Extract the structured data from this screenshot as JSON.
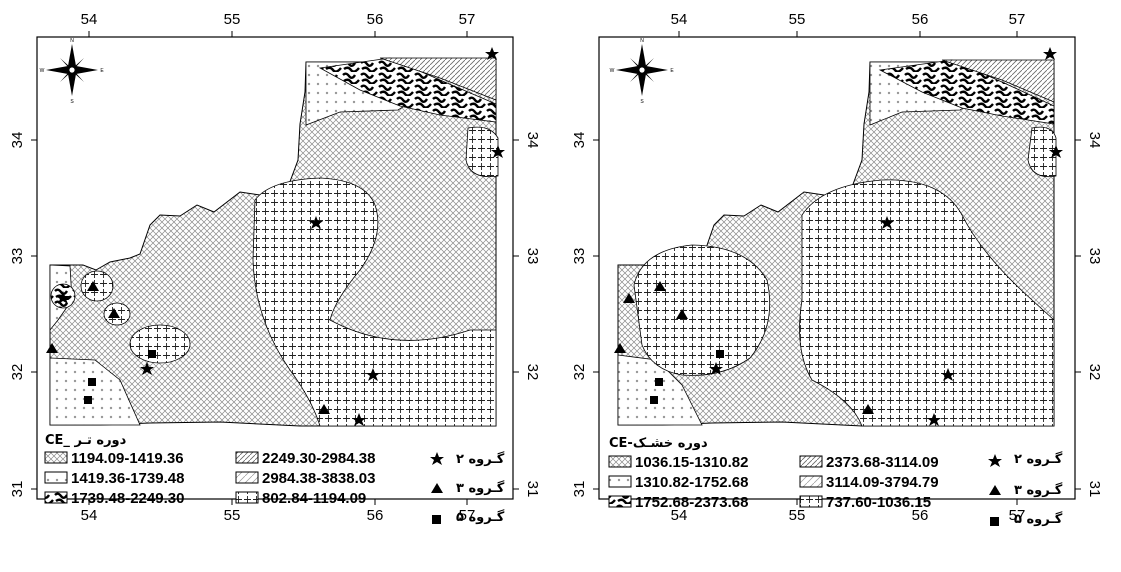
{
  "axis": {
    "x_ticks": [
      "54",
      "55",
      "56",
      "57"
    ],
    "y_ticks": [
      "34",
      "33",
      "32",
      "31"
    ]
  },
  "compass_letters": {
    "n": "N",
    "s": "S",
    "e": "E",
    "w": "W"
  },
  "group_legend": [
    {
      "label": "گـروه ۲",
      "symbol": "star"
    },
    {
      "label": "گـروه ۳",
      "symbol": "triangle"
    },
    {
      "label": "گـروه ۵",
      "symbol": "square"
    }
  ],
  "maps": [
    {
      "title": "CE_ دوره تـر",
      "classes": [
        {
          "range": "1194.09-1419.36",
          "pattern": "crosshatch"
        },
        {
          "range": "1419.36-1739.48",
          "pattern": "dots-x"
        },
        {
          "range": "1739.48-2249.30",
          "pattern": "worm"
        },
        {
          "range": "2249.30-2984.38",
          "pattern": "diag-dense"
        },
        {
          "range": "2984.38-3838.03",
          "pattern": "diag-light"
        },
        {
          "range": "802.84-1194.09",
          "pattern": "plus-dots"
        }
      ]
    },
    {
      "title": "CE-دوره خشـک",
      "classes": [
        {
          "range": "1036.15-1310.82",
          "pattern": "crosshatch"
        },
        {
          "range": "1310.82-1752.68",
          "pattern": "dots-x"
        },
        {
          "range": "1752.68-2373.68",
          "pattern": "worm"
        },
        {
          "range": "2373.68-3114.09",
          "pattern": "diag-dense"
        },
        {
          "range": "3114.09-3794.79",
          "pattern": "diag-light"
        },
        {
          "range": "737.60-1036.15",
          "pattern": "plus"
        }
      ]
    }
  ],
  "colors": {
    "ink": "#000000",
    "background": "#ffffff",
    "hatch": "#555555"
  }
}
